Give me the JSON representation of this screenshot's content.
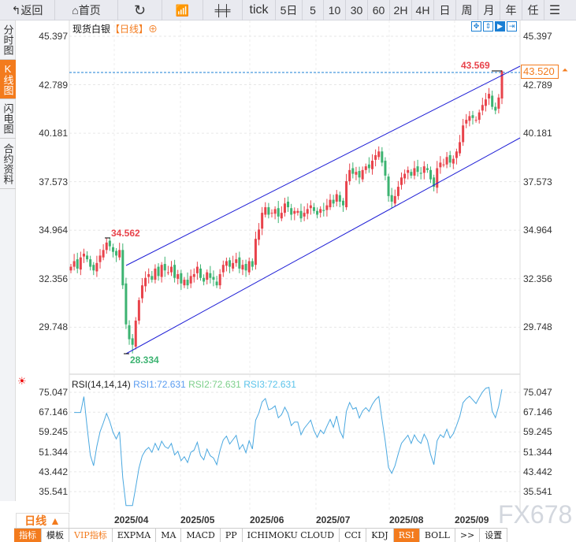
{
  "toolbar": {
    "back": "返回",
    "home": "首页",
    "tick": "tick",
    "periods": [
      "5日",
      "5",
      "10",
      "30",
      "60",
      "2H",
      "4H",
      "日",
      "周",
      "月",
      "年",
      "任"
    ]
  },
  "sidebar": [
    "分时图",
    "K线图",
    "闪电图",
    "合约资料"
  ],
  "chart": {
    "instrument": "现货白银",
    "period_tag": "【日线】",
    "price_ticks": [
      "45.397",
      "42.789",
      "40.181",
      "37.573",
      "34.964",
      "32.356",
      "29.748"
    ],
    "high_label": "34.562",
    "low_label": "28.334",
    "recent_high": "43.569",
    "last_price": "43.520",
    "colors": {
      "up": "#e8434b",
      "down": "#3cb371",
      "channel": "#1f1fd6",
      "accent": "#f37b1d"
    }
  },
  "chart_data": {
    "type": "candlestick",
    "start_month": "2025/03",
    "closes": [
      33.0,
      33.3,
      32.9,
      33.5,
      33.7,
      33.4,
      33.0,
      32.8,
      33.2,
      33.6,
      33.9,
      34.3,
      34.1,
      33.8,
      33.6,
      33.9,
      32.0,
      29.9,
      29.1,
      28.8,
      30.1,
      31.2,
      32.0,
      32.4,
      32.6,
      32.3,
      32.9,
      32.5,
      33.1,
      32.8,
      32.7,
      33.0,
      32.4,
      32.6,
      32.1,
      32.3,
      32.0,
      32.5,
      32.6,
      33.0,
      32.4,
      32.2,
      32.7,
      32.4,
      32.3,
      32.0,
      32.6,
      33.1,
      33.3,
      33.0,
      33.2,
      33.4,
      32.9,
      33.1,
      32.8,
      33.3,
      33.0,
      34.5,
      35.0,
      35.9,
      36.2,
      35.8,
      35.9,
      36.1,
      35.7,
      35.9,
      36.4,
      36.2,
      35.8,
      36.0,
      36.0,
      35.6,
      35.9,
      36.1,
      36.3,
      36.0,
      35.8,
      36.1,
      36.0,
      36.3,
      36.6,
      36.4,
      36.9,
      36.5,
      36.3,
      37.6,
      38.2,
      38.0,
      38.1,
      37.8,
      38.2,
      38.4,
      38.3,
      38.7,
      39.0,
      39.2,
      38.6,
      37.9,
      36.8,
      36.5,
      36.8,
      37.3,
      37.8,
      38.0,
      38.2,
      37.9,
      38.3,
      38.1,
      38.0,
      38.4,
      38.2,
      37.7,
      37.3,
      38.3,
      38.6,
      38.5,
      38.9,
      38.6,
      38.8,
      39.2,
      39.7,
      40.6,
      40.9,
      41.1,
      41.0,
      40.9,
      41.3,
      41.7,
      42.0,
      42.3,
      41.6,
      41.4,
      42.1,
      43.52
    ],
    "ylim": [
      27.9,
      45.397
    ],
    "x_labels": [
      "2025/04",
      "2025/05",
      "2025/06",
      "2025/07",
      "2025/08",
      "2025/09"
    ]
  },
  "rsi": {
    "title": "RSI(14,14,14)",
    "rsi1": "RSI1:72.631",
    "rsi2": "RSI2:72.631",
    "rsi3": "RSI3:72.631",
    "ticks": [
      "75.047",
      "67.146",
      "59.245",
      "51.344",
      "43.442",
      "35.541"
    ]
  },
  "bottom": {
    "period": "日线 ▲",
    "tabs": [
      "指标",
      "模板",
      "VIP指标",
      "EXPMA",
      "MA",
      "MACD",
      "PP",
      "ICHIMOKU CLOUD",
      "CCI",
      "KDJ",
      "RSI",
      "BOLL",
      ">>",
      "设置"
    ]
  },
  "watermark": "FX678"
}
